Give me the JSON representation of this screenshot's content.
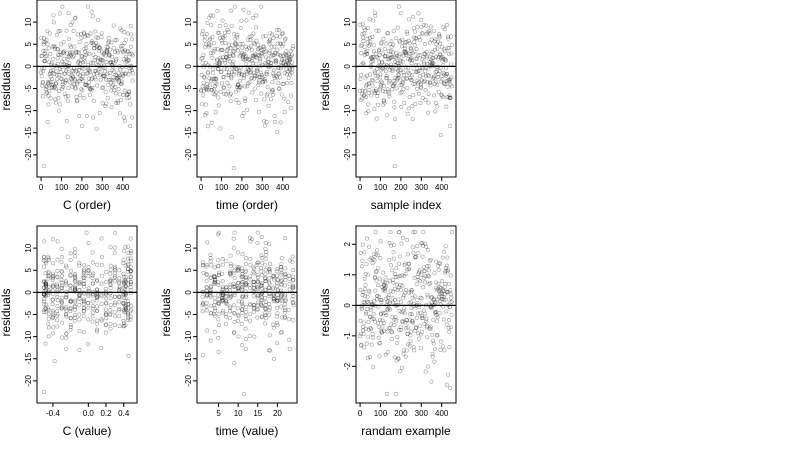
{
  "chart_data": [
    {
      "type": "scatter",
      "xlabel": "C (order)",
      "ylabel": "residuals",
      "xlim": [
        -20,
        470
      ],
      "ylim": [
        -25,
        15
      ],
      "x_ticks": [
        0,
        100,
        200,
        300,
        400
      ],
      "y_ticks": [
        -20,
        -15,
        -10,
        -5,
        0,
        5,
        10
      ],
      "x_tick_labels": [
        "0",
        "100",
        "200",
        "300",
        "400"
      ],
      "y_tick_labels": [
        "-20",
        "-15",
        "-10",
        "-5",
        "0",
        "5",
        "10"
      ],
      "hline": 0,
      "points": {
        "generator": "index",
        "n": 450,
        "x_range": [
          0,
          450
        ],
        "spread": 5,
        "clip": [
          -22,
          13.5
        ],
        "seed": 11,
        "extremes": [
          [
            15,
            -22.5
          ],
          [
            230,
            13.5
          ],
          [
            130,
            -16
          ],
          [
            200,
            -13.5
          ],
          [
            135,
            12
          ]
        ]
      }
    },
    {
      "type": "scatter",
      "xlabel": "time (order)",
      "ylabel": "residuals",
      "xlim": [
        -20,
        470
      ],
      "ylim": [
        -25,
        15
      ],
      "x_ticks": [
        0,
        100,
        200,
        300,
        400
      ],
      "y_ticks": [
        -20,
        -15,
        -10,
        -5,
        0,
        5,
        10
      ],
      "x_tick_labels": [
        "0",
        "100",
        "200",
        "300",
        "400"
      ],
      "y_tick_labels": [
        "-20",
        "-15",
        "-10",
        "-5",
        "0",
        "5",
        "10"
      ],
      "hline": 0,
      "points": {
        "generator": "index",
        "n": 450,
        "x_range": [
          0,
          450
        ],
        "spread": 5,
        "clip": [
          -22,
          13.5
        ],
        "seed": 23,
        "extremes": [
          [
            160,
            -23
          ],
          [
            295,
            13.5
          ],
          [
            150,
            -16
          ],
          [
            95,
            -14
          ],
          [
            270,
            11.5
          ]
        ]
      }
    },
    {
      "type": "scatter",
      "xlabel": "sample index",
      "ylabel": "residuals",
      "xlim": [
        -20,
        470
      ],
      "ylim": [
        -25,
        15
      ],
      "x_ticks": [
        0,
        100,
        200,
        300,
        400
      ],
      "y_ticks": [
        -20,
        -15,
        -10,
        -5,
        0,
        5,
        10
      ],
      "x_tick_labels": [
        "0",
        "100",
        "200",
        "300",
        "400"
      ],
      "y_tick_labels": [
        "-20",
        "-15",
        "-10",
        "-5",
        "0",
        "5",
        "10"
      ],
      "hline": 0,
      "points": {
        "generator": "index",
        "n": 450,
        "x_range": [
          0,
          450
        ],
        "spread": 5,
        "clip": [
          -22,
          13.5
        ],
        "seed": 37,
        "extremes": [
          [
            170,
            -22.5
          ],
          [
            190,
            13.5
          ],
          [
            165,
            -16
          ],
          [
            440,
            -13.5
          ],
          [
            200,
            12
          ]
        ]
      }
    },
    {
      "type": "scatter",
      "xlabel": "C (value)",
      "ylabel": "residuals",
      "xlim": [
        -0.58,
        0.55
      ],
      "ylim": [
        -25,
        15
      ],
      "x_ticks": [
        -0.4,
        0.0,
        0.2,
        0.4
      ],
      "y_ticks": [
        -20,
        -15,
        -10,
        -5,
        0,
        5,
        10
      ],
      "x_tick_labels": [
        "-0.4",
        "0.0",
        "0.2",
        "0.4"
      ],
      "y_tick_labels": [
        "-20",
        "-15",
        "-10",
        "-5",
        "0",
        "5",
        "10"
      ],
      "hline": 0,
      "points": {
        "generator": "columns",
        "n": 450,
        "columns": [
          -0.5,
          -0.48,
          -0.45,
          -0.4,
          -0.35,
          -0.3,
          -0.25,
          -0.2,
          -0.15,
          -0.1,
          -0.05,
          0.0,
          0.05,
          0.1,
          0.15,
          0.2,
          0.25,
          0.3,
          0.35,
          0.4,
          0.42,
          0.45,
          0.48
        ],
        "jitter": 0.004,
        "spread": 5,
        "clip": [
          -22,
          13.5
        ],
        "seed": 41,
        "extremes": [
          [
            -0.5,
            -22.5
          ],
          [
            -0.02,
            13.5
          ],
          [
            -0.38,
            -15.5
          ],
          [
            -0.1,
            -13
          ],
          [
            -0.4,
            12
          ]
        ]
      }
    },
    {
      "type": "scatter",
      "xlabel": "time (value)",
      "ylabel": "residuals",
      "xlim": [
        -0.5,
        25
      ],
      "ylim": [
        -25,
        15
      ],
      "x_ticks": [
        5,
        10,
        15,
        20
      ],
      "y_ticks": [
        -20,
        -15,
        -10,
        -5,
        0,
        5,
        10
      ],
      "x_tick_labels": [
        "5",
        "10",
        "15",
        "20"
      ],
      "y_tick_labels": [
        "-20",
        "-15",
        "-10",
        "-5",
        "0",
        "5",
        "10"
      ],
      "hline": 0,
      "points": {
        "generator": "columns",
        "n": 450,
        "columns": [
          1,
          2,
          3,
          4,
          5,
          6,
          7,
          8,
          9,
          10,
          11,
          12,
          13,
          14,
          15,
          16,
          17,
          18,
          19,
          20,
          21,
          22,
          23,
          24
        ],
        "jitter": 0.15,
        "spread": 5,
        "clip": [
          -22,
          13.5
        ],
        "seed": 53,
        "extremes": [
          [
            11.5,
            -23
          ],
          [
            15,
            13.5
          ],
          [
            9,
            -16
          ],
          [
            5,
            -13.5
          ],
          [
            13.5,
            12
          ]
        ]
      }
    },
    {
      "type": "scatter",
      "xlabel": "randam example",
      "ylabel": "residuals",
      "xlim": [
        -20,
        470
      ],
      "ylim": [
        -3.2,
        2.6
      ],
      "x_ticks": [
        0,
        100,
        200,
        300,
        400
      ],
      "y_ticks": [
        -2,
        -1,
        0,
        1,
        2
      ],
      "x_tick_labels": [
        "0",
        "100",
        "200",
        "300",
        "400"
      ],
      "y_tick_labels": [
        "-2",
        "-1",
        "0",
        "1",
        "2"
      ],
      "hline": 0,
      "points": {
        "generator": "index",
        "n": 450,
        "x_range": [
          0,
          450
        ],
        "spread": 1,
        "clip": [
          -2.9,
          2.4
        ],
        "seed": 67,
        "extremes": [
          [
            190,
            2.4
          ],
          [
            175,
            -2.9
          ],
          [
            425,
            -2.6
          ],
          [
            100,
            2.1
          ],
          [
            350,
            -2.5
          ]
        ]
      }
    }
  ]
}
